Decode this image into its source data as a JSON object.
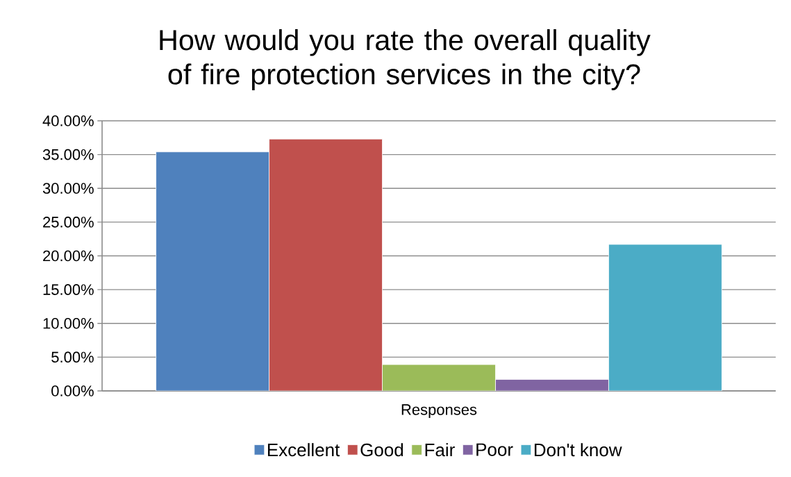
{
  "chart_data": {
    "type": "bar",
    "title": "How would you rate the overall quality of fire protection services in the city?",
    "categories": [
      "Responses"
    ],
    "series": [
      {
        "name": "Excellent",
        "color": "#4f81bd",
        "values": [
          35.4
        ]
      },
      {
        "name": "Good",
        "color": "#c0504d",
        "values": [
          37.3
        ]
      },
      {
        "name": "Fair",
        "color": "#9bbb59",
        "values": [
          3.9
        ]
      },
      {
        "name": "Poor",
        "color": "#8064a2",
        "values": [
          1.7
        ]
      },
      {
        "name": "Don't know",
        "color": "#4bacc6",
        "values": [
          21.7
        ]
      }
    ],
    "ylim": [
      0,
      40
    ],
    "yticks": [
      {
        "value": 0,
        "label": "0.00%"
      },
      {
        "value": 5,
        "label": "5.00%"
      },
      {
        "value": 10,
        "label": "10.00%"
      },
      {
        "value": 15,
        "label": "15.00%"
      },
      {
        "value": 20,
        "label": "20.00%"
      },
      {
        "value": 25,
        "label": "25.00%"
      },
      {
        "value": 30,
        "label": "30.00%"
      },
      {
        "value": 35,
        "label": "35.00%"
      },
      {
        "value": 40,
        "label": "40.00%"
      }
    ],
    "grid": "y",
    "legend": "bottom"
  }
}
